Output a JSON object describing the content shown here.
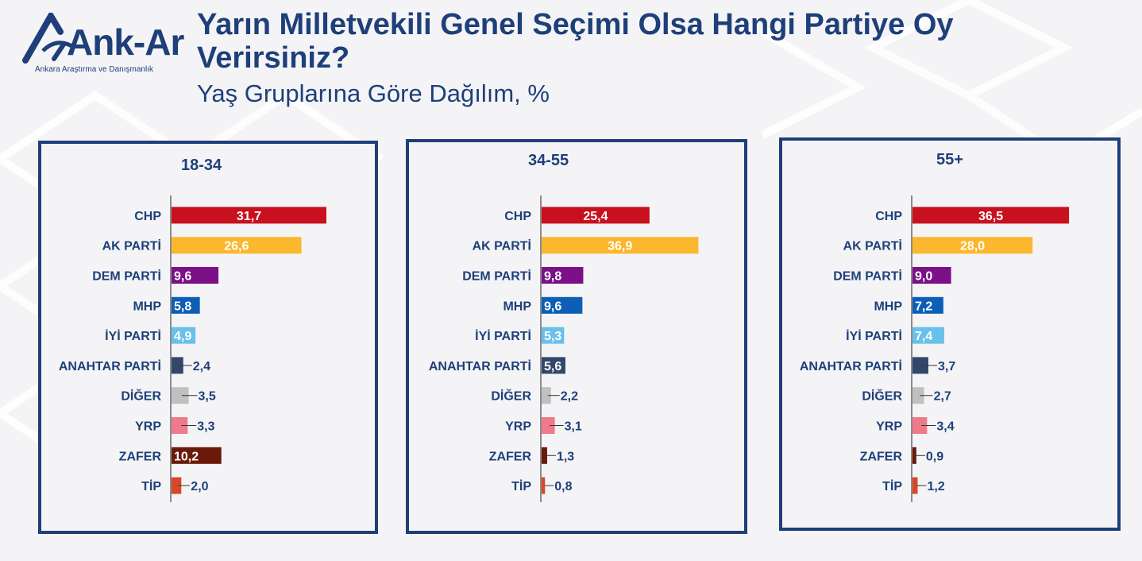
{
  "logo": {
    "name": "Ank-Ar",
    "tagline": "Ankara Araştırma ve Danışmanlık"
  },
  "title": "Yarın Milletvekili Genel Seçimi Olsa Hangi Partiye Oy Verirsiniz?",
  "subtitle": "Yaş Gruplarına Göre Dağılım, %",
  "colors": {
    "frame": "#1e3f79",
    "CHP": "#c8101e",
    "AK PARTİ": "#fbb72d",
    "DEM PARTİ": "#7b1087",
    "MHP": "#0c5fb5",
    "İYİ PARTİ": "#69c0ea",
    "ANAHTAR PARTİ": "#33476a",
    "DİĞER": "#c0c0c0",
    "YRP": "#ef7a8a",
    "ZAFER": "#6a1a0a",
    "TİP": "#d8472a"
  },
  "chart_data": [
    {
      "type": "bar",
      "orientation": "horizontal",
      "title": "18-34",
      "categories": [
        "CHP",
        "AK PARTİ",
        "DEM PARTİ",
        "MHP",
        "İYİ PARTİ",
        "ANAHTAR PARTİ",
        "DİĞER",
        "YRP",
        "ZAFER",
        "TİP"
      ],
      "values": [
        31.7,
        26.6,
        9.6,
        5.8,
        4.9,
        2.4,
        3.5,
        3.3,
        10.2,
        2.0
      ],
      "labels": [
        "31,7",
        "26,6",
        "9,6",
        "5,8",
        "4,9",
        "2,4",
        "3,5",
        "3,3",
        "10,2",
        "2,0"
      ]
    },
    {
      "type": "bar",
      "orientation": "horizontal",
      "title": "34-55",
      "categories": [
        "CHP",
        "AK PARTİ",
        "DEM PARTİ",
        "MHP",
        "İYİ PARTİ",
        "ANAHTAR PARTİ",
        "DİĞER",
        "YRP",
        "ZAFER",
        "TİP"
      ],
      "values": [
        25.4,
        36.9,
        9.8,
        9.6,
        5.3,
        5.6,
        2.2,
        3.1,
        1.3,
        0.8
      ],
      "labels": [
        "25,4",
        "36,9",
        "9,8",
        "9,6",
        "5,3",
        "5,6",
        "2,2",
        "3,1",
        "1,3",
        "0,8"
      ]
    },
    {
      "type": "bar",
      "orientation": "horizontal",
      "title": "55+",
      "categories": [
        "CHP",
        "AK PARTİ",
        "DEM PARTİ",
        "MHP",
        "İYİ PARTİ",
        "ANAHTAR PARTİ",
        "DİĞER",
        "YRP",
        "ZAFER",
        "TİP"
      ],
      "values": [
        36.5,
        28.0,
        9.0,
        7.2,
        7.4,
        3.7,
        2.7,
        3.4,
        0.9,
        1.2
      ],
      "labels": [
        "36,5",
        "28,0",
        "9,0",
        "7,2",
        "7,4",
        "3,7",
        "2,7",
        "3,4",
        "0,9",
        "1,2"
      ]
    }
  ]
}
